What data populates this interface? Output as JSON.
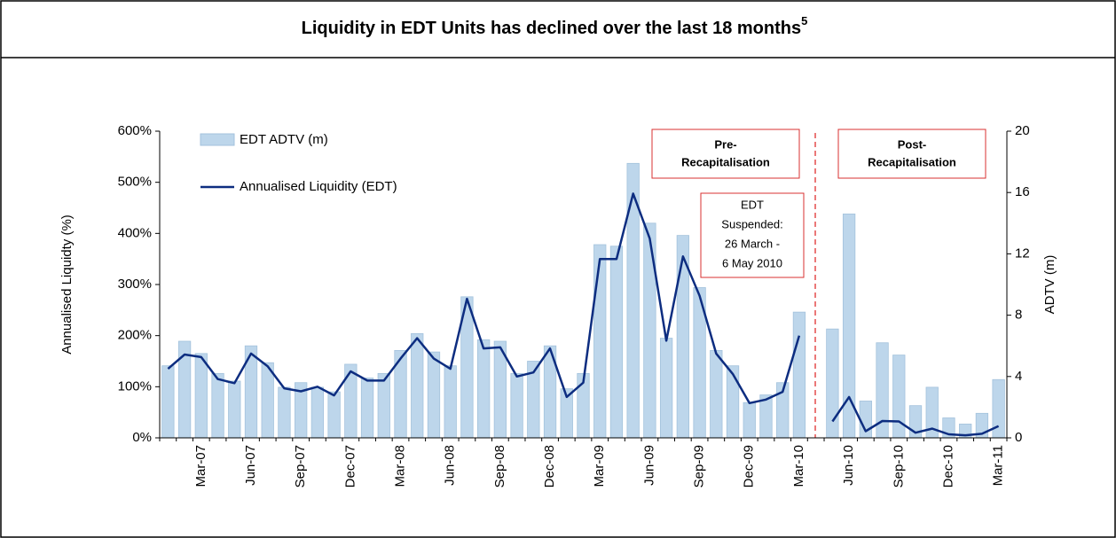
{
  "chart_data": {
    "type": "bar_line",
    "title": "Liquidity in EDT Units has declined over the last 18 months",
    "title_superscript": "5",
    "ylabel": "Annualised Liquidty (%)",
    "y2label": "ADTV (m)",
    "categories": [
      null,
      null,
      "Mar-07",
      null,
      null,
      "Jun-07",
      null,
      null,
      "Sep-07",
      null,
      null,
      "Dec-07",
      null,
      null,
      "Mar-08",
      null,
      null,
      "Jun-08",
      null,
      null,
      "Sep-08",
      null,
      null,
      "Dec-08",
      null,
      null,
      "Mar-09",
      null,
      null,
      "Jun-09",
      null,
      null,
      "Sep-09",
      null,
      null,
      "Dec-09",
      null,
      null,
      "Mar-10",
      null,
      null,
      "Jun-10",
      null,
      null,
      "Sep-10",
      null,
      null,
      "Dec-10",
      null,
      null,
      "Mar-11"
    ],
    "series": [
      {
        "name": "EDT ADTV (m)",
        "type": "bar",
        "axis": "y2",
        "color": "#bdd6eb",
        "values": [
          4.7,
          6.3,
          5.5,
          4.2,
          3.7,
          6.0,
          4.9,
          3.3,
          3.6,
          3.3,
          3.0,
          4.8,
          3.9,
          4.2,
          5.7,
          6.8,
          5.6,
          4.7,
          9.2,
          6.4,
          6.3,
          4.2,
          5.0,
          6.0,
          3.2,
          4.2,
          12.6,
          12.5,
          17.9,
          14.0,
          6.5,
          13.2,
          9.8,
          5.7,
          4.7,
          2.3,
          2.8,
          3.6,
          8.2,
          null,
          7.1,
          14.6,
          2.4,
          6.2,
          5.4,
          2.1,
          3.3,
          1.3,
          0.9,
          1.6,
          3.8
        ]
      },
      {
        "name": "Annualised Liquidity (EDT)",
        "type": "line",
        "color": "#0d2d80",
        "values": [
          135,
          163,
          158,
          115,
          107,
          165,
          140,
          97,
          91,
          100,
          83,
          130,
          112,
          112,
          155,
          195,
          155,
          135,
          272,
          175,
          177,
          120,
          128,
          175,
          80,
          108,
          350,
          350,
          478,
          390,
          190,
          355,
          278,
          165,
          125,
          68,
          75,
          90,
          200,
          null,
          32,
          80,
          13,
          33,
          32,
          10,
          18,
          7,
          5,
          8,
          23
        ]
      }
    ],
    "ylim": [
      0,
      600
    ],
    "yticks": [
      {
        "value": 0,
        "label": "0%"
      },
      {
        "value": 100,
        "label": "100%"
      },
      {
        "value": 200,
        "label": "200%"
      },
      {
        "value": 300,
        "label": "300%"
      },
      {
        "value": 400,
        "label": "400%"
      },
      {
        "value": 500,
        "label": "500%"
      },
      {
        "value": 600,
        "label": "600%"
      }
    ],
    "y2lim": [
      0,
      20
    ],
    "y2ticks": [
      0,
      4,
      8,
      12,
      16,
      20
    ],
    "annotations": {
      "pre": [
        "Pre-",
        "Recapitalisation"
      ],
      "post": [
        "Post-",
        "Recapitalisation"
      ],
      "suspended": [
        "EDT",
        "Suspended:",
        "26 March -",
        "6 May 2010"
      ]
    }
  }
}
